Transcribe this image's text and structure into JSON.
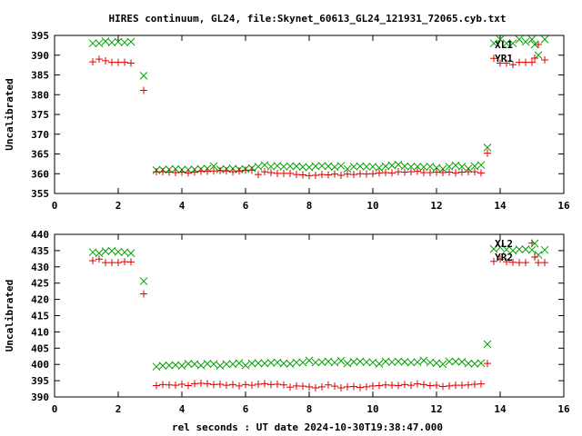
{
  "chart_data": [
    {
      "type": "scatter",
      "title": "HIRES continuum, GL24, file:Skynet_60613_GL24_121931_72065.cyb.txt",
      "xlabel": "",
      "ylabel": "Uncalibrated",
      "xlim": [
        0,
        16
      ],
      "ylim": [
        355,
        395
      ],
      "xticks": [
        0,
        2,
        4,
        6,
        8,
        10,
        12,
        14,
        16
      ],
      "yticks": [
        355,
        360,
        365,
        370,
        375,
        380,
        385,
        390,
        395
      ],
      "grid": false,
      "legend_position": "top-right",
      "series": [
        {
          "name": "XL1",
          "marker": "x",
          "color": "#00a000",
          "x": [
            1.2,
            1.4,
            1.6,
            1.8,
            2.0,
            2.2,
            2.4,
            2.8,
            3.2,
            3.4,
            3.6,
            3.8,
            4.0,
            4.2,
            4.4,
            4.6,
            4.8,
            5.0,
            5.2,
            5.4,
            5.6,
            5.8,
            6.0,
            6.2,
            6.4,
            6.6,
            6.8,
            7.0,
            7.2,
            7.4,
            7.6,
            7.8,
            8.0,
            8.2,
            8.4,
            8.6,
            8.8,
            9.0,
            9.2,
            9.4,
            9.6,
            9.8,
            10.0,
            10.2,
            10.4,
            10.6,
            10.8,
            11.0,
            11.2,
            11.4,
            11.6,
            11.8,
            12.0,
            12.2,
            12.4,
            12.6,
            12.8,
            13.0,
            13.2,
            13.4,
            13.6,
            13.8,
            14.0,
            14.2,
            14.4,
            14.6,
            14.8,
            15.0,
            15.2,
            15.4
          ],
          "y": [
            393,
            393,
            393.5,
            393.2,
            393.4,
            393.2,
            393.4,
            384.8,
            360.9,
            361,
            361.1,
            361.2,
            361,
            361,
            361.1,
            361.2,
            361.3,
            361.9,
            361.1,
            361.2,
            361.3,
            361.1,
            361.2,
            361.4,
            361.8,
            362.2,
            361.8,
            362,
            361.8,
            361.9,
            361.9,
            361.7,
            361.6,
            361.9,
            362,
            361.9,
            361.7,
            362,
            361.2,
            361.8,
            361.9,
            361.8,
            361.8,
            361.5,
            361.9,
            362.1,
            362.3,
            361.9,
            361.8,
            361.8,
            361.7,
            361.8,
            361.5,
            361.2,
            361.8,
            362.1,
            361.8,
            361.3,
            361.9,
            362.2,
            366.6,
            393,
            394,
            393,
            393,
            394,
            393.4,
            394,
            390,
            394
          ]
        },
        {
          "name": "YR1",
          "marker": "+",
          "color": "#e00000",
          "x": [
            1.2,
            1.4,
            1.6,
            1.8,
            2.0,
            2.2,
            2.4,
            2.8,
            3.2,
            3.4,
            3.6,
            3.8,
            4.0,
            4.2,
            4.4,
            4.6,
            4.8,
            5.0,
            5.2,
            5.4,
            5.6,
            5.8,
            6.0,
            6.2,
            6.4,
            6.6,
            6.8,
            7.0,
            7.2,
            7.4,
            7.6,
            7.8,
            8.0,
            8.2,
            8.4,
            8.6,
            8.8,
            9.0,
            9.2,
            9.4,
            9.6,
            9.8,
            10.0,
            10.2,
            10.4,
            10.6,
            10.8,
            11.0,
            11.2,
            11.4,
            11.6,
            11.8,
            12.0,
            12.2,
            12.4,
            12.6,
            12.8,
            13.0,
            13.2,
            13.4,
            13.6,
            13.8,
            14.0,
            14.2,
            14.4,
            14.6,
            14.8,
            15.0,
            15.2,
            15.4
          ],
          "y": [
            388.3,
            389,
            388.6,
            388.2,
            388.2,
            388.2,
            388,
            381.1,
            360.5,
            360.5,
            360.4,
            360.3,
            360.4,
            360.2,
            360.4,
            360.6,
            360.6,
            360.7,
            360.8,
            360.7,
            360.5,
            360.7,
            360.9,
            360.9,
            359.8,
            360.5,
            360.3,
            360.1,
            360.1,
            360.1,
            359.8,
            359.7,
            359.5,
            359.6,
            359.8,
            359.7,
            359.9,
            359.6,
            359.9,
            359.8,
            360,
            359.9,
            360,
            360.2,
            360.3,
            360.2,
            360.5,
            360.4,
            360.5,
            360.6,
            360.3,
            360.3,
            360.4,
            360.3,
            360.4,
            360.2,
            360.4,
            360.5,
            360.5,
            360.2,
            365.2,
            389.2,
            388,
            388,
            387.6,
            388.2,
            388.2,
            388.2,
            392.7,
            388.8
          ]
        }
      ]
    },
    {
      "type": "scatter",
      "title": "",
      "xlabel": "rel seconds : UT date 2024-10-30T19:38:47.000",
      "ylabel": "Uncalibrated",
      "xlim": [
        0,
        16
      ],
      "ylim": [
        390,
        440
      ],
      "xticks": [
        0,
        2,
        4,
        6,
        8,
        10,
        12,
        14,
        16
      ],
      "yticks": [
        390,
        395,
        400,
        405,
        410,
        415,
        420,
        425,
        430,
        435,
        440
      ],
      "grid": false,
      "legend_position": "top-right",
      "series": [
        {
          "name": "XL2",
          "marker": "x",
          "color": "#00a000",
          "x": [
            1.2,
            1.4,
            1.6,
            1.8,
            2.0,
            2.2,
            2.4,
            2.8,
            3.2,
            3.4,
            3.6,
            3.8,
            4.0,
            4.2,
            4.4,
            4.6,
            4.8,
            5.0,
            5.2,
            5.4,
            5.6,
            5.8,
            6.0,
            6.2,
            6.4,
            6.6,
            6.8,
            7.0,
            7.2,
            7.4,
            7.6,
            7.8,
            8.0,
            8.2,
            8.4,
            8.6,
            8.8,
            9.0,
            9.2,
            9.4,
            9.6,
            9.8,
            10.0,
            10.2,
            10.4,
            10.6,
            10.8,
            11.0,
            11.2,
            11.4,
            11.6,
            11.8,
            12.0,
            12.2,
            12.4,
            12.6,
            12.8,
            13.0,
            13.2,
            13.4,
            13.6,
            13.8,
            14.0,
            14.2,
            14.4,
            14.6,
            14.8,
            15.0,
            15.2,
            15.4
          ],
          "y": [
            434.5,
            434.2,
            434.8,
            434.9,
            434.6,
            434.5,
            434.2,
            425.6,
            399.3,
            399.6,
            399.7,
            399.8,
            399.6,
            400.2,
            400.1,
            399.7,
            400.2,
            400.1,
            399.6,
            400.1,
            400.1,
            400.4,
            399.7,
            400.3,
            400.4,
            400.3,
            400.5,
            400.6,
            400.3,
            400.2,
            400.6,
            400.6,
            401.2,
            400.6,
            400.7,
            400.9,
            400.6,
            401.1,
            400.3,
            400.8,
            400.9,
            400.7,
            400.6,
            400.2,
            400.9,
            400.7,
            400.9,
            400.8,
            400.6,
            400.7,
            401.2,
            400.6,
            400.4,
            400.1,
            400.9,
            400.9,
            400.8,
            400.3,
            400.2,
            400.4,
            406.2,
            435.5,
            436,
            435.3,
            435,
            435.4,
            435.4,
            435.2,
            433.7,
            435.2
          ]
        },
        {
          "name": "YR2",
          "marker": "+",
          "color": "#e00000",
          "x": [
            1.2,
            1.4,
            1.6,
            1.8,
            2.0,
            2.2,
            2.4,
            2.8,
            3.2,
            3.4,
            3.6,
            3.8,
            4.0,
            4.2,
            4.4,
            4.6,
            4.8,
            5.0,
            5.2,
            5.4,
            5.6,
            5.8,
            6.0,
            6.2,
            6.4,
            6.6,
            6.8,
            7.0,
            7.2,
            7.4,
            7.6,
            7.8,
            8.0,
            8.2,
            8.4,
            8.6,
            8.8,
            9.0,
            9.2,
            9.4,
            9.6,
            9.8,
            10.0,
            10.2,
            10.4,
            10.6,
            10.8,
            11.0,
            11.2,
            11.4,
            11.6,
            11.8,
            12.0,
            12.2,
            12.4,
            12.6,
            12.8,
            13.0,
            13.2,
            13.4,
            13.6,
            13.8,
            14.0,
            14.2,
            14.4,
            14.6,
            14.8,
            15.0,
            15.2,
            15.4
          ],
          "y": [
            431.9,
            432.4,
            431.3,
            431.3,
            431.3,
            431.6,
            431.5,
            421.7,
            393.5,
            393.8,
            393.7,
            393.6,
            393.9,
            393.5,
            394.1,
            394.2,
            394.1,
            393.8,
            393.9,
            393.6,
            393.8,
            393.4,
            393.8,
            393.6,
            393.9,
            394.1,
            393.8,
            393.9,
            393.7,
            393,
            393.4,
            393.3,
            393.1,
            392.8,
            393.1,
            393.7,
            393.3,
            392.8,
            393.1,
            393.2,
            392.9,
            393.1,
            393.4,
            393.5,
            393.7,
            393.6,
            393.5,
            393.8,
            393.6,
            394,
            393.8,
            393.5,
            393.6,
            393.2,
            393.4,
            393.6,
            393.6,
            393.7,
            393.9,
            394,
            400.3,
            431.7,
            432.4,
            431.6,
            431.4,
            431.3,
            431.3,
            437.3,
            431.3,
            431.3
          ]
        }
      ]
    }
  ]
}
